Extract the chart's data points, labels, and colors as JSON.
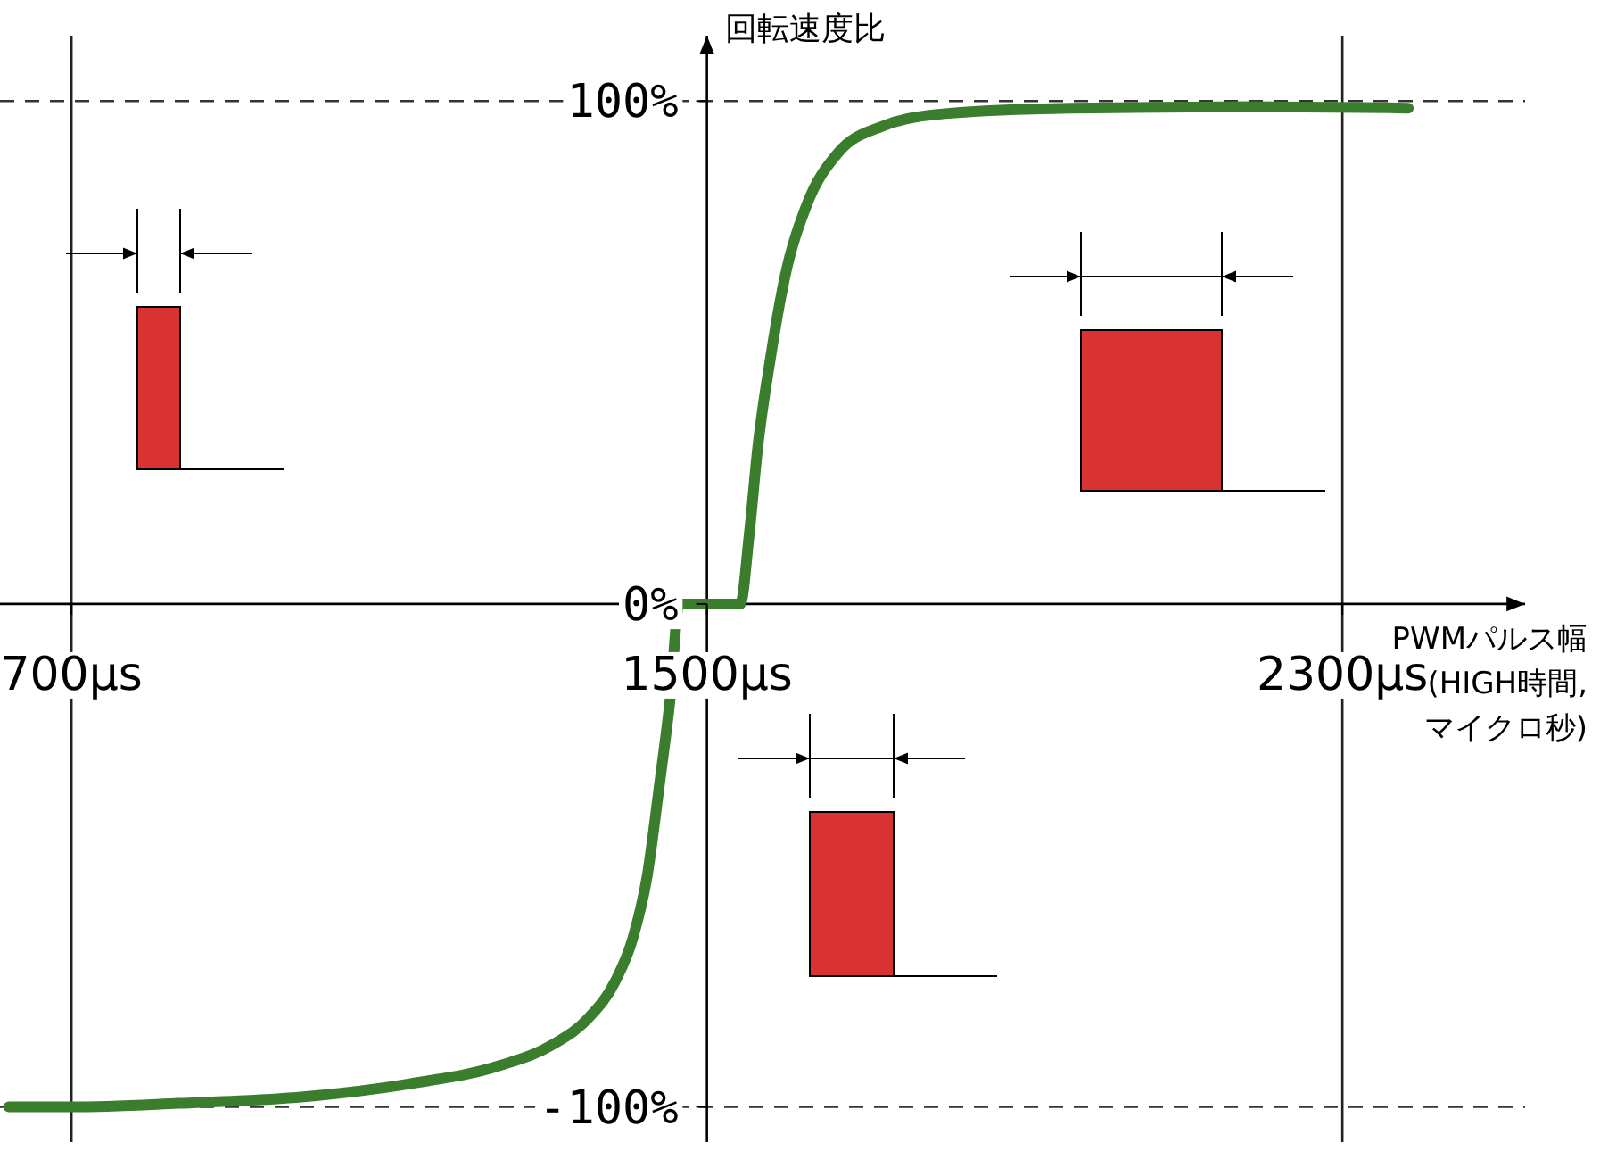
{
  "chart_data": {
    "type": "line",
    "xlabel": "PWMパルス幅\n(HIGH時間,\nマイクロ秒)",
    "ylabel": "回転速度比",
    "series": [
      {
        "color": "#3a7d2c",
        "x": [
          621,
          700,
          835,
          992,
          1126,
          1239,
          1306,
          1351,
          1384,
          1407,
          1425,
          1440,
          1454,
          1465,
          1542,
          1553,
          1564,
          1580,
          1598,
          1625,
          1665,
          1721,
          1800,
          1957,
          2181,
          2383
        ],
        "values": [
          -100,
          -100,
          -99.3,
          -98,
          -95.4,
          -91.8,
          -87.6,
          -82.3,
          -75.2,
          -66.3,
          -53.9,
          -36.2,
          -18.4,
          0,
          0,
          13.5,
          31.2,
          48.9,
          64.9,
          79.1,
          89.7,
          95,
          97.5,
          98.6,
          98.9,
          98.6
        ]
      }
    ],
    "xlim": [
      610,
      2530
    ],
    "ylim": [
      -107,
      113
    ],
    "xticks": [
      {
        "value": 700,
        "label": "700µs"
      },
      {
        "value": 1500,
        "label": "1500µs"
      },
      {
        "value": 2300,
        "label": "2300µs"
      }
    ],
    "yticks": [
      {
        "value": -100,
        "label": "-100%"
      },
      {
        "value": 0,
        "label": "0%"
      },
      {
        "value": 100,
        "label": "100%"
      }
    ],
    "ref_lines": [
      {
        "axis": "y",
        "value": 100,
        "color": "#333333",
        "line_style": "dashed"
      },
      {
        "axis": "y",
        "value": -100,
        "color": "#333333",
        "line_style": "dashed"
      },
      {
        "axis": "x",
        "value": 700,
        "color": "#222222",
        "line_style": "solid"
      },
      {
        "axis": "x",
        "value": 2300,
        "color": "#222222",
        "line_style": "solid"
      }
    ],
    "grid": false,
    "marker": "none",
    "line_style": "solid"
  }
}
